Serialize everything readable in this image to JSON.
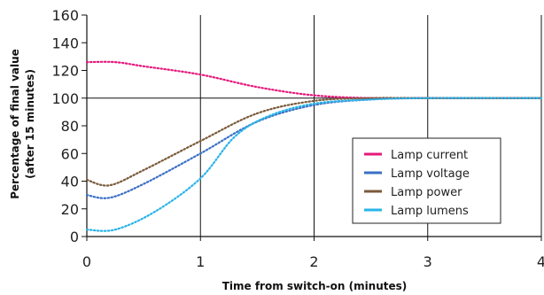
{
  "chart_data": {
    "type": "line",
    "title": "",
    "xlabel": "Time from switch-on (minutes)",
    "ylabel_line1": "Percentage of final value",
    "ylabel_line2": "(after 15 minutes)",
    "xlim": [
      0,
      4
    ],
    "ylim": [
      0,
      160
    ],
    "x_ticks": [
      0,
      1,
      2,
      3,
      4
    ],
    "y_ticks": [
      0,
      20,
      40,
      60,
      80,
      100,
      120,
      140,
      160
    ],
    "grid": {
      "x_lines": [
        1,
        2,
        3,
        4
      ],
      "y_lines": [
        100
      ]
    },
    "legend_position": "lower-right",
    "line_style": "dotted",
    "series": [
      {
        "name": "Lamp current",
        "color": "#e6197d",
        "points": [
          [
            0,
            126
          ],
          [
            0.25,
            126
          ],
          [
            0.5,
            123
          ],
          [
            1,
            117
          ],
          [
            1.5,
            108
          ],
          [
            2,
            102
          ],
          [
            2.5,
            100
          ],
          [
            3,
            100
          ],
          [
            4,
            100
          ]
        ]
      },
      {
        "name": "Lamp voltage",
        "color": "#3a6fc4",
        "points": [
          [
            0,
            30
          ],
          [
            0.2,
            28
          ],
          [
            0.5,
            38
          ],
          [
            1,
            60
          ],
          [
            1.5,
            83
          ],
          [
            2,
            95
          ],
          [
            2.5,
            99
          ],
          [
            3,
            100
          ],
          [
            4,
            100
          ]
        ]
      },
      {
        "name": "Lamp power",
        "color": "#7a5a3a",
        "points": [
          [
            0,
            41
          ],
          [
            0.2,
            37
          ],
          [
            0.5,
            48
          ],
          [
            1,
            69
          ],
          [
            1.5,
            89
          ],
          [
            2,
            98
          ],
          [
            2.5,
            100
          ],
          [
            3,
            100
          ],
          [
            4,
            100
          ]
        ]
      },
      {
        "name": "Lamp lumens",
        "color": "#29b4e8",
        "points": [
          [
            0,
            5
          ],
          [
            0.25,
            5
          ],
          [
            0.6,
            18
          ],
          [
            1,
            42
          ],
          [
            1.3,
            72
          ],
          [
            1.6,
            87
          ],
          [
            2,
            96
          ],
          [
            2.5,
            99
          ],
          [
            3,
            100
          ],
          [
            4,
            100
          ]
        ]
      }
    ]
  }
}
